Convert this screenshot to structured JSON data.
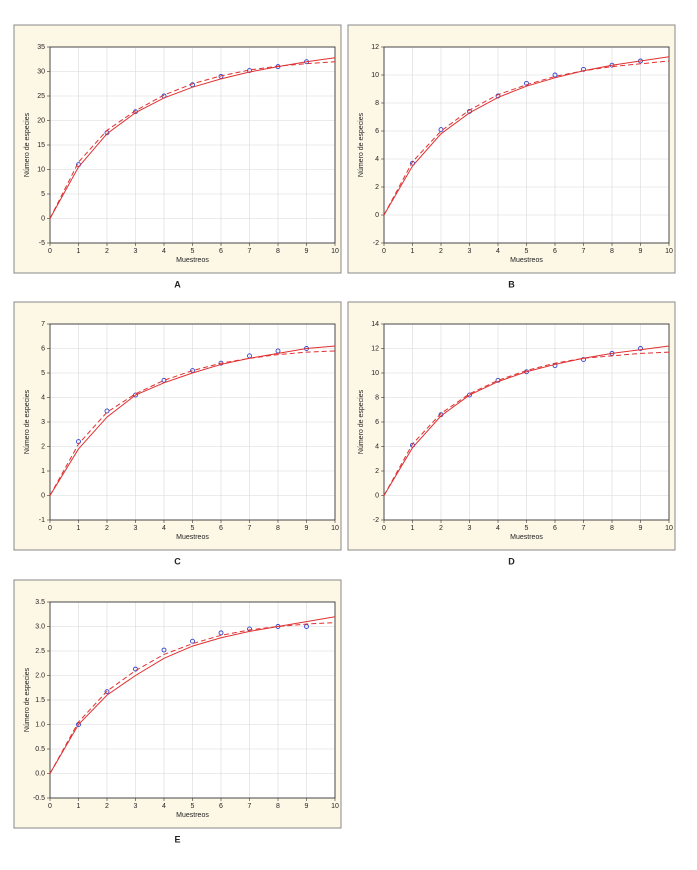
{
  "chart_data": [
    {
      "type": "line",
      "label": "A",
      "x_label": "Muestreos",
      "y_label": "Número de especies",
      "x": [
        0,
        1,
        2,
        3,
        4,
        5,
        6,
        7,
        8,
        9,
        10
      ],
      "xlim": [
        0,
        10
      ],
      "xticks": [
        0,
        1,
        2,
        3,
        4,
        5,
        6,
        7,
        8,
        9,
        10
      ],
      "ylim": [
        -5,
        35
      ],
      "yticks": [
        -5,
        0,
        5,
        10,
        15,
        20,
        25,
        30,
        35
      ],
      "grid": true,
      "series": [
        {
          "color": "#3344cc",
          "marker": "circle",
          "line": "none",
          "values": [
            null,
            11,
            17.5,
            21.8,
            25,
            27.3,
            29,
            30.2,
            31,
            32,
            null
          ]
        },
        {
          "color": "#e03030",
          "marker": "none",
          "line": "solid",
          "values": [
            0,
            10.5,
            17.3,
            21.6,
            24.6,
            26.8,
            28.5,
            29.9,
            31,
            32,
            32.8
          ]
        },
        {
          "color": "#e03030",
          "marker": "none",
          "line": "dashed",
          "values": [
            0,
            11.5,
            18,
            22,
            25.2,
            27.5,
            29.1,
            30.3,
            31.1,
            31.6,
            32
          ]
        }
      ]
    },
    {
      "type": "line",
      "label": "B",
      "x_label": "Muestreos",
      "y_label": "Número de especies",
      "x": [
        0,
        1,
        2,
        3,
        4,
        5,
        6,
        7,
        8,
        9,
        10
      ],
      "xlim": [
        0,
        10
      ],
      "xticks": [
        0,
        1,
        2,
        3,
        4,
        5,
        6,
        7,
        8,
        9,
        10
      ],
      "ylim": [
        -2,
        12
      ],
      "yticks": [
        -2,
        0,
        2,
        4,
        6,
        8,
        10,
        12
      ],
      "grid": true,
      "series": [
        {
          "color": "#3344cc",
          "marker": "circle",
          "line": "none",
          "values": [
            null,
            3.7,
            6.1,
            7.4,
            8.5,
            9.4,
            10,
            10.4,
            10.7,
            11,
            null
          ]
        },
        {
          "color": "#e03030",
          "marker": "none",
          "line": "solid",
          "values": [
            0,
            3.5,
            5.8,
            7.3,
            8.4,
            9.2,
            9.8,
            10.3,
            10.7,
            11,
            11.3
          ]
        },
        {
          "color": "#e03030",
          "marker": "none",
          "line": "dashed",
          "values": [
            0,
            3.8,
            6,
            7.5,
            8.6,
            9.3,
            9.9,
            10.3,
            10.6,
            10.8,
            11
          ]
        }
      ]
    },
    {
      "type": "line",
      "label": "C",
      "x_label": "Muestreos",
      "y_label": "Número de especies",
      "x": [
        0,
        1,
        2,
        3,
        4,
        5,
        6,
        7,
        8,
        9,
        10
      ],
      "xlim": [
        0,
        10
      ],
      "xticks": [
        0,
        1,
        2,
        3,
        4,
        5,
        6,
        7,
        8,
        9,
        10
      ],
      "ylim": [
        -1,
        7
      ],
      "yticks": [
        -1,
        0,
        1,
        2,
        3,
        4,
        5,
        6,
        7
      ],
      "grid": true,
      "series": [
        {
          "color": "#3344cc",
          "marker": "circle",
          "line": "none",
          "values": [
            null,
            2.2,
            3.45,
            4.1,
            4.7,
            5.1,
            5.4,
            5.7,
            5.9,
            6,
            null
          ]
        },
        {
          "color": "#e03030",
          "marker": "none",
          "line": "solid",
          "values": [
            0,
            1.9,
            3.2,
            4.1,
            4.6,
            5,
            5.35,
            5.6,
            5.8,
            6,
            6.1
          ]
        },
        {
          "color": "#e03030",
          "marker": "none",
          "line": "dashed",
          "values": [
            0,
            2.1,
            3.4,
            4.15,
            4.7,
            5.1,
            5.4,
            5.6,
            5.75,
            5.85,
            5.9
          ]
        }
      ]
    },
    {
      "type": "line",
      "label": "D",
      "x_label": "Muestreos",
      "y_label": "Número de especies",
      "x": [
        0,
        1,
        2,
        3,
        4,
        5,
        6,
        7,
        8,
        9,
        10
      ],
      "xlim": [
        0,
        10
      ],
      "xticks": [
        0,
        1,
        2,
        3,
        4,
        5,
        6,
        7,
        8,
        9,
        10
      ],
      "ylim": [
        -2,
        14
      ],
      "yticks": [
        -2,
        0,
        2,
        4,
        6,
        8,
        10,
        12,
        14
      ],
      "grid": true,
      "series": [
        {
          "color": "#3344cc",
          "marker": "circle",
          "line": "none",
          "values": [
            null,
            4.1,
            6.6,
            8.2,
            9.4,
            10.1,
            10.6,
            11.1,
            11.6,
            12,
            null
          ]
        },
        {
          "color": "#e03030",
          "marker": "none",
          "line": "solid",
          "values": [
            0,
            3.9,
            6.5,
            8.2,
            9.3,
            10.1,
            10.7,
            11.2,
            11.6,
            11.9,
            12.2
          ]
        },
        {
          "color": "#e03030",
          "marker": "none",
          "line": "dashed",
          "values": [
            0,
            4.2,
            6.7,
            8.3,
            9.4,
            10.2,
            10.8,
            11.2,
            11.4,
            11.6,
            11.7
          ]
        }
      ]
    },
    {
      "type": "line",
      "label": "E",
      "x_label": "Muestreos",
      "y_label": "Número de especies",
      "x": [
        0,
        1,
        2,
        3,
        4,
        5,
        6,
        7,
        8,
        9,
        10
      ],
      "xlim": [
        0,
        10
      ],
      "xticks": [
        0,
        1,
        2,
        3,
        4,
        5,
        6,
        7,
        8,
        9,
        10
      ],
      "ylim": [
        -0.5,
        3.5
      ],
      "yticks": [
        -0.5,
        {
          "value": 0,
          "label": "0.0"
        },
        0.5,
        {
          "value": 1,
          "label": "1.0"
        },
        1.5,
        {
          "value": 2,
          "label": "2.0"
        },
        2.5,
        {
          "value": 3,
          "label": "3.0"
        },
        3.5
      ],
      "grid": true,
      "series": [
        {
          "color": "#3344cc",
          "marker": "circle",
          "line": "none",
          "values": [
            null,
            1,
            1.67,
            2.13,
            2.52,
            2.7,
            2.87,
            2.95,
            3,
            3,
            null
          ]
        },
        {
          "color": "#e03030",
          "marker": "none",
          "line": "solid",
          "values": [
            0,
            1,
            1.6,
            2,
            2.35,
            2.6,
            2.77,
            2.9,
            3,
            3.1,
            3.2
          ]
        },
        {
          "color": "#e03030",
          "marker": "none",
          "line": "dashed",
          "values": [
            0,
            1.05,
            1.68,
            2.1,
            2.43,
            2.65,
            2.82,
            2.93,
            3,
            3.05,
            3.08
          ]
        }
      ]
    }
  ]
}
